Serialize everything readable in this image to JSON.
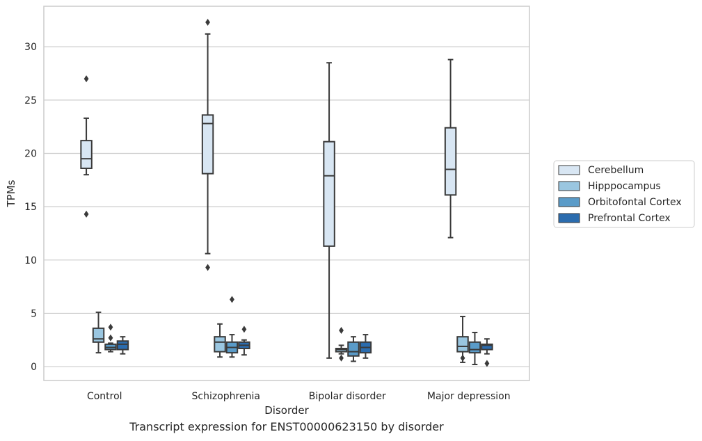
{
  "chart_data": {
    "type": "box",
    "categories": [
      "Control",
      "Schizophrenia",
      "Bipolar disorder",
      "Major depression"
    ],
    "xlabel": "Disorder",
    "ylabel": "TPMs",
    "ylim": [
      -1.3,
      33.8
    ],
    "yticks": [
      0,
      5,
      10,
      15,
      20,
      25,
      30
    ],
    "grid": true,
    "legend_position": "right-outside",
    "caption": "Transcript expression for ENST00000623150 by disorder",
    "series": [
      {
        "name": "Cerebellum",
        "color": "#d8e6f3",
        "boxes": [
          {
            "whisker_low": 18.0,
            "q1": 18.6,
            "median": 19.5,
            "q3": 21.2,
            "whisker_high": 23.3,
            "outliers": [
              27.0,
              14.3
            ]
          },
          {
            "whisker_low": 10.6,
            "q1": 18.1,
            "median": 22.8,
            "q3": 23.6,
            "whisker_high": 31.2,
            "outliers": [
              32.3,
              9.3
            ]
          },
          {
            "whisker_low": 0.8,
            "q1": 11.3,
            "median": 17.9,
            "q3": 21.1,
            "whisker_high": 28.5,
            "outliers": []
          },
          {
            "whisker_low": 12.1,
            "q1": 16.1,
            "median": 18.5,
            "q3": 22.4,
            "whisker_high": 28.8,
            "outliers": []
          }
        ]
      },
      {
        "name": "Hipppocampus",
        "color": "#9ac6e0",
        "boxes": [
          {
            "whisker_low": 1.3,
            "q1": 2.3,
            "median": 2.6,
            "q3": 3.6,
            "whisker_high": 5.1,
            "outliers": []
          },
          {
            "whisker_low": 0.9,
            "q1": 1.4,
            "median": 2.3,
            "q3": 2.8,
            "whisker_high": 4.0,
            "outliers": []
          },
          {
            "whisker_low": 1.2,
            "q1": 1.4,
            "median": 1.6,
            "q3": 1.7,
            "whisker_high": 2.0,
            "outliers": [
              3.4,
              0.8
            ]
          },
          {
            "whisker_low": 0.4,
            "q1": 1.4,
            "median": 1.9,
            "q3": 2.8,
            "whisker_high": 4.7,
            "outliers": [
              0.8
            ]
          }
        ]
      },
      {
        "name": "Orbitofontal Cortex",
        "color": "#5a9bc8",
        "boxes": [
          {
            "whisker_low": 1.4,
            "q1": 1.6,
            "median": 1.8,
            "q3": 2.1,
            "whisker_high": 2.2,
            "outliers": [
              3.7,
              2.7
            ]
          },
          {
            "whisker_low": 0.9,
            "q1": 1.3,
            "median": 1.8,
            "q3": 2.3,
            "whisker_high": 3.0,
            "outliers": [
              6.3
            ]
          },
          {
            "whisker_low": 0.5,
            "q1": 1.0,
            "median": 1.4,
            "q3": 2.3,
            "whisker_high": 2.8,
            "outliers": []
          },
          {
            "whisker_low": 0.2,
            "q1": 1.3,
            "median": 1.6,
            "q3": 2.3,
            "whisker_high": 3.2,
            "outliers": []
          }
        ]
      },
      {
        "name": "Prefrontal Cortex",
        "color": "#2b6cae",
        "boxes": [
          {
            "whisker_low": 1.2,
            "q1": 1.6,
            "median": 2.1,
            "q3": 2.4,
            "whisker_high": 2.8,
            "outliers": []
          },
          {
            "whisker_low": 1.1,
            "q1": 1.7,
            "median": 2.0,
            "q3": 2.3,
            "whisker_high": 2.5,
            "outliers": [
              3.5
            ]
          },
          {
            "whisker_low": 0.8,
            "q1": 1.3,
            "median": 1.8,
            "q3": 2.3,
            "whisker_high": 3.0,
            "outliers": []
          },
          {
            "whisker_low": 1.2,
            "q1": 1.6,
            "median": 2.0,
            "q3": 2.1,
            "whisker_high": 2.6,
            "outliers": [
              0.3
            ]
          }
        ]
      }
    ]
  }
}
